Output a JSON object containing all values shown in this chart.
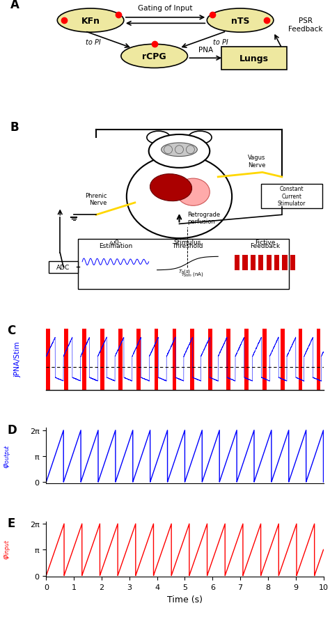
{
  "panel_C_color_blue": "#0000FF",
  "panel_C_color_red": "#FF0000",
  "panel_D_color": "#0000FF",
  "panel_E_color": "#FF0000",
  "time_end": 10,
  "output_freq": 1.6,
  "input_freq": 1.55,
  "panel_labels": [
    "A",
    "B",
    "C",
    "D",
    "E"
  ],
  "xlabel": "Time (s)",
  "ylabel_C": "jPNA/Stim",
  "ylabel_D": "φoutput",
  "ylabel_E": "φinput",
  "yticks_phase": [
    0,
    3.14159,
    6.28318
  ],
  "ytick_labels_phase": [
    "0",
    "π",
    "2π"
  ],
  "xticks": [
    0,
    1,
    2,
    3,
    4,
    5,
    6,
    7,
    8,
    9,
    10
  ],
  "bg_color": "#FFFFFF",
  "node_fill": "#EEE8A0",
  "lungs_fill": "#EEE8A0",
  "red_dot_color": "#FF0000",
  "pna_period": 0.62,
  "pna_duty": 0.52,
  "stim_period": 0.65,
  "stim_duty": 0.22
}
